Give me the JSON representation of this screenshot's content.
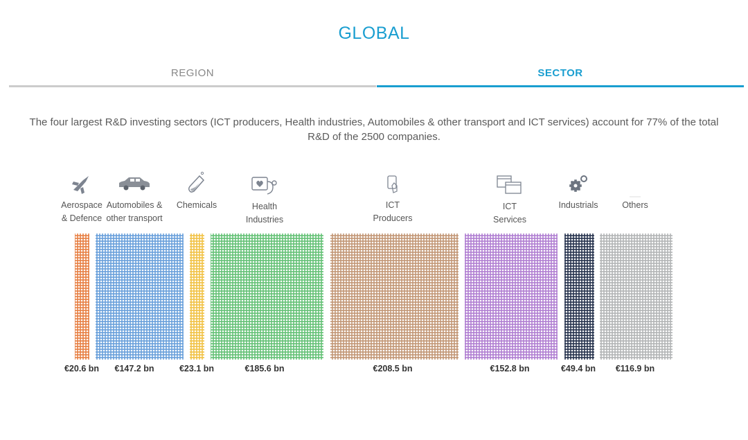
{
  "title": "GLOBAL",
  "tabs": [
    {
      "label": "REGION",
      "active": false
    },
    {
      "label": "SECTOR",
      "active": true
    }
  ],
  "description": "The four largest R&D investing sectors (ICT producers, Health industries, Automobiles & other transport and ICT services) account for 77% of the total R&D of the 2500 companies.",
  "chart_data": {
    "type": "bar",
    "unit": "€ bn",
    "categories": [
      "Aerospace & Defence",
      "Automobiles & other transport",
      "Chemicals",
      "Health Industries",
      "ICT Producers",
      "ICT Services",
      "Industrials",
      "Others"
    ],
    "label_lines": [
      [
        "Aerospace",
        "& Defence"
      ],
      [
        "Automobiles &",
        "other transport"
      ],
      [
        "Chemicals"
      ],
      [
        "Health",
        "Industries"
      ],
      [
        "ICT",
        "Producers"
      ],
      [
        "ICT",
        "Services"
      ],
      [
        "Industrials"
      ],
      [
        "Others"
      ]
    ],
    "values": [
      20.6,
      147.2,
      23.1,
      185.6,
      208.5,
      152.8,
      49.4,
      116.9
    ],
    "value_labels": [
      "€20.6 bn",
      "€147.2 bn",
      "€23.1 bn",
      "€185.6 bn",
      "€208.5 bn",
      "€152.8 bn",
      "€49.4 bn",
      "€116.9 bn"
    ],
    "colors": [
      "#e8844a",
      "#6ea3dc",
      "#f2c44c",
      "#69c37a",
      "#c49a7a",
      "#b383d3",
      "#2e3a54",
      "#b5b7b8"
    ],
    "icons": [
      "airplane-icon",
      "car-icon",
      "test-tube-icon",
      "heart-monitor-icon",
      "phone-device-icon",
      "window-stack-icon",
      "gears-icon",
      "none"
    ]
  }
}
